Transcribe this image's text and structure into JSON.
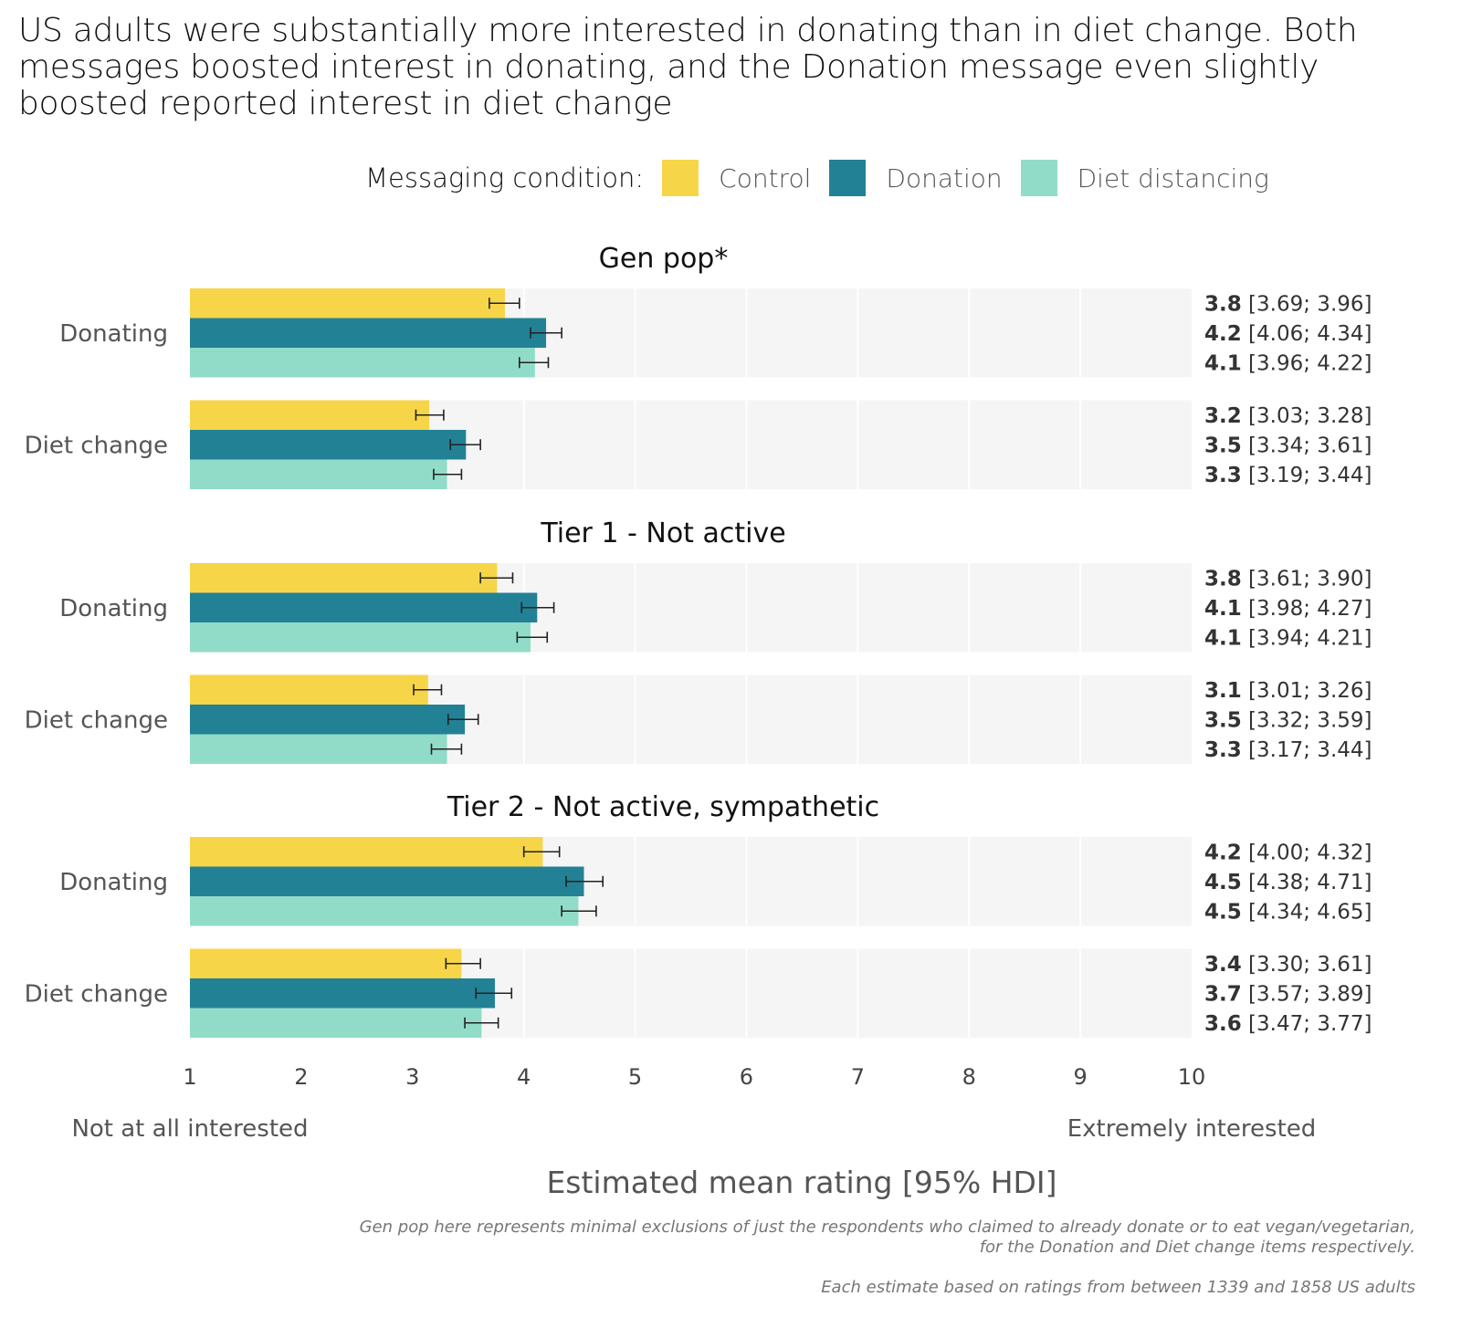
{
  "chart_data": {
    "type": "bar",
    "orientation": "horizontal",
    "title": "US adults were substantially more interested in donating than in diet change. Both messages boosted interest in donating, and the Donation message even slightly boosted reported interest in diet change",
    "legend": {
      "title": "Messaging condition:",
      "placement": "top",
      "entries": [
        {
          "name": "Control",
          "color": "#F7D548"
        },
        {
          "name": "Donation",
          "color": "#238196"
        },
        {
          "name": "Diet distancing",
          "color": "#91DCC8"
        }
      ]
    },
    "xlabel": "Estimated mean rating [95% HDI]",
    "xlim": [
      1,
      10
    ],
    "xticks": [
      "1",
      "2",
      "3",
      "4",
      "5",
      "6",
      "7",
      "8",
      "9",
      "10"
    ],
    "x_anchor_labels": {
      "low": "Not at all interested",
      "high": "Extremely interested"
    },
    "grid": true,
    "panel_background": "#F5F5F5",
    "facets": [
      {
        "title": "Gen pop*",
        "groups": [
          {
            "label": "Donating",
            "series": [
              {
                "condition": "Control",
                "estimate": 3.83,
                "display": "3.8",
                "ci_low": 3.69,
                "ci_high": 3.96
              },
              {
                "condition": "Donation",
                "estimate": 4.2,
                "display": "4.2",
                "ci_low": 4.06,
                "ci_high": 4.34
              },
              {
                "condition": "Diet distancing",
                "estimate": 4.1,
                "display": "4.1",
                "ci_low": 3.96,
                "ci_high": 4.22
              }
            ]
          },
          {
            "label": "Diet change",
            "series": [
              {
                "condition": "Control",
                "estimate": 3.15,
                "display": "3.2",
                "ci_low": 3.03,
                "ci_high": 3.28
              },
              {
                "condition": "Donation",
                "estimate": 3.48,
                "display": "3.5",
                "ci_low": 3.34,
                "ci_high": 3.61
              },
              {
                "condition": "Diet distancing",
                "estimate": 3.31,
                "display": "3.3",
                "ci_low": 3.19,
                "ci_high": 3.44
              }
            ]
          }
        ]
      },
      {
        "title": "Tier 1 - Not active",
        "groups": [
          {
            "label": "Donating",
            "series": [
              {
                "condition": "Control",
                "estimate": 3.76,
                "display": "3.8",
                "ci_low": 3.61,
                "ci_high": 3.9
              },
              {
                "condition": "Donation",
                "estimate": 4.12,
                "display": "4.1",
                "ci_low": 3.98,
                "ci_high": 4.27
              },
              {
                "condition": "Diet distancing",
                "estimate": 4.06,
                "display": "4.1",
                "ci_low": 3.94,
                "ci_high": 4.21
              }
            ]
          },
          {
            "label": "Diet change",
            "series": [
              {
                "condition": "Control",
                "estimate": 3.14,
                "display": "3.1",
                "ci_low": 3.01,
                "ci_high": 3.26
              },
              {
                "condition": "Donation",
                "estimate": 3.47,
                "display": "3.5",
                "ci_low": 3.32,
                "ci_high": 3.59
              },
              {
                "condition": "Diet distancing",
                "estimate": 3.31,
                "display": "3.3",
                "ci_low": 3.17,
                "ci_high": 3.44
              }
            ]
          }
        ]
      },
      {
        "title": "Tier 2 - Not active, sympathetic",
        "groups": [
          {
            "label": "Donating",
            "series": [
              {
                "condition": "Control",
                "estimate": 4.17,
                "display": "4.2",
                "ci_low": 4.0,
                "ci_high": 4.32
              },
              {
                "condition": "Donation",
                "estimate": 4.54,
                "display": "4.5",
                "ci_low": 4.38,
                "ci_high": 4.71
              },
              {
                "condition": "Diet distancing",
                "estimate": 4.49,
                "display": "4.5",
                "ci_low": 4.34,
                "ci_high": 4.65
              }
            ]
          },
          {
            "label": "Diet change",
            "series": [
              {
                "condition": "Control",
                "estimate": 3.44,
                "display": "3.4",
                "ci_low": 3.3,
                "ci_high": 3.61
              },
              {
                "condition": "Donation",
                "estimate": 3.74,
                "display": "3.7",
                "ci_low": 3.57,
                "ci_high": 3.89
              },
              {
                "condition": "Diet distancing",
                "estimate": 3.62,
                "display": "3.6",
                "ci_low": 3.47,
                "ci_high": 3.77
              }
            ]
          }
        ]
      }
    ],
    "captions": [
      "Gen pop here represents minimal exclusions of just the respondents who claimed to already donate or to eat vegan/vegetarian,",
      "for the Donation and Diet change items respectively.",
      "Each estimate based on ratings from between 1339 and 1858 US adults"
    ]
  }
}
